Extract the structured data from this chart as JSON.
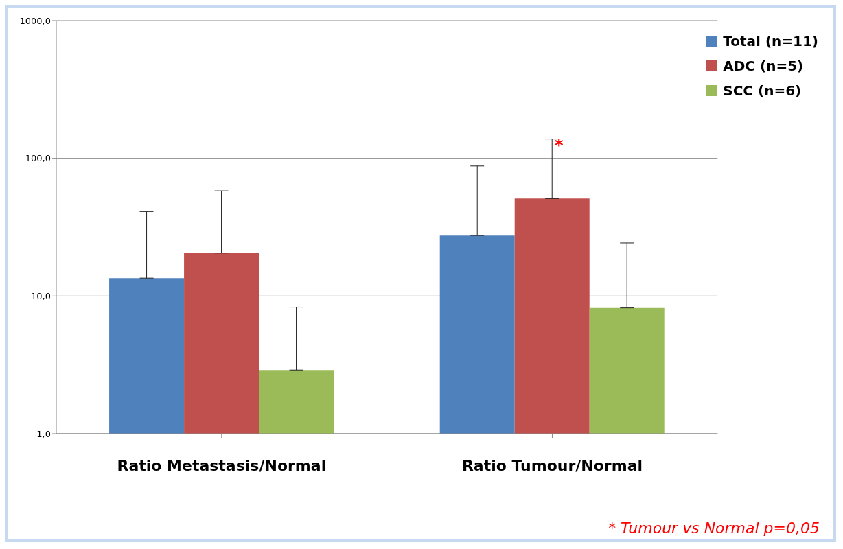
{
  "chart_data": {
    "type": "bar",
    "categories": [
      "Ratio Metastasis/Normal",
      "Ratio Tumour/Normal"
    ],
    "series": [
      {
        "name": "Total (n=11)",
        "color": "#4f81bd",
        "values": [
          13.5,
          27.5
        ],
        "errors": [
          [
            13.5,
            41
          ],
          [
            27.5,
            88
          ]
        ]
      },
      {
        "name": "ADC (n=5)",
        "color": "#c0504d",
        "values": [
          20.5,
          51
        ],
        "errors": [
          [
            20.5,
            58
          ],
          [
            51,
            138
          ]
        ]
      },
      {
        "name": "SCC (n=6)",
        "color": "#9bbb59",
        "values": [
          2.9,
          8.2
        ],
        "errors": [
          [
            2.9,
            8.3
          ],
          [
            8.2,
            24.3
          ]
        ]
      }
    ],
    "log": "y",
    "ylim": [
      1,
      1000
    ],
    "yticks": [
      {
        "value": 1,
        "label": "1,0"
      },
      {
        "value": 10,
        "label": "10,0"
      },
      {
        "value": 100,
        "label": "100,0"
      },
      {
        "value": 1000,
        "label": "1000,0"
      }
    ],
    "grid": "y",
    "legend": "top right",
    "annotations": [
      "*",
      "* Tumour vs Normal  p=0,05"
    ]
  }
}
